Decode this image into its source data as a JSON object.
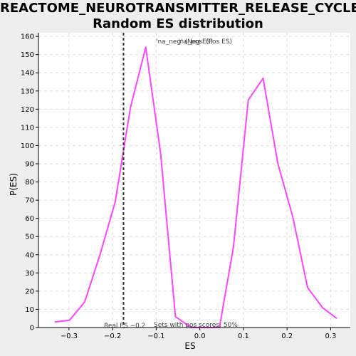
{
  "chart_data": {
    "type": "line",
    "title_lines": [
      "REACTOME_NEUROTRANSMITTER_RELEASE_CYCLE:",
      "Random ES distribution"
    ],
    "xlabel": "ES",
    "ylabel": "P(ES)",
    "xlim": [
      -0.37,
      0.345
    ],
    "ylim": [
      0,
      162
    ],
    "xticks": [
      -0.3,
      -0.2,
      -0.1,
      0.0,
      0.1,
      0.2,
      0.3
    ],
    "xtick_labels": [
      "−0.3",
      "−0.2",
      "−0.1",
      "0.0",
      "0.1",
      "0.2",
      "0.3"
    ],
    "yticks": [
      0,
      10,
      20,
      30,
      40,
      50,
      60,
      70,
      80,
      90,
      100,
      110,
      120,
      130,
      140,
      150,
      160
    ],
    "ytick_labels": [
      "0",
      "10",
      "20",
      "30",
      "40",
      "50",
      "60",
      "70",
      "80",
      "90",
      "100",
      "110",
      "120",
      "130",
      "140",
      "150",
      "160"
    ],
    "grid": true,
    "series": [
      {
        "color": "#ff44ff",
        "x": [
          -0.333,
          -0.299,
          -0.264,
          -0.229,
          -0.194,
          -0.159,
          -0.124,
          -0.09,
          -0.056,
          -0.02,
          0.012,
          0.045,
          0.077,
          0.111,
          0.145,
          0.179,
          0.213,
          0.247,
          0.281,
          0.314
        ],
        "y": [
          3,
          4,
          14,
          40,
          69,
          121,
          154,
          96,
          6,
          0,
          0,
          0,
          44,
          125,
          137,
          90,
          61,
          22,
          11,
          5
        ]
      }
    ],
    "real_es": {
      "x": -0.175,
      "label": "Real ES −0.2"
    },
    "legend": {
      "neg_label": "'na_neg' (Neg ES)",
      "pos_label": "'na_pos' (Pos ES)",
      "neg_color": "#5555cc",
      "pos_color": "#ee4444"
    },
    "annotation": "Sets with pos scores: 50%"
  },
  "colors": {
    "background": "#eeeeee",
    "plot_bg": "#ffffff",
    "grid": "#dddddd",
    "line": "#ff44ff",
    "real_es_line": "#333333"
  }
}
